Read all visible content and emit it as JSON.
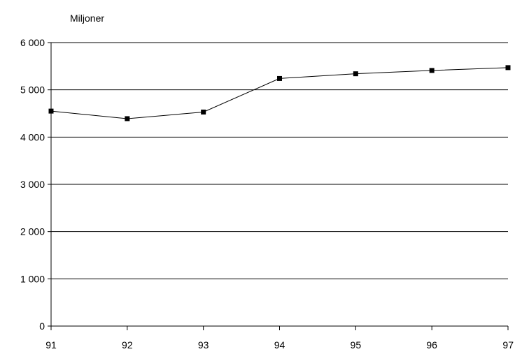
{
  "chart_data": {
    "type": "line",
    "ylabel": "Miljoner",
    "x": [
      "91",
      "92",
      "93",
      "94",
      "95",
      "96",
      "97"
    ],
    "series": [
      {
        "values": [
          4550,
          4390,
          4530,
          5240,
          5340,
          5410,
          5470
        ]
      }
    ],
    "ylim": [
      0,
      6000
    ],
    "yticks": [
      0,
      1000,
      2000,
      3000,
      4000,
      5000,
      6000
    ],
    "ytick_labels": [
      "0",
      "1 000",
      "2 000",
      "3 000",
      "4 000",
      "5 000",
      "6 000"
    ],
    "grid": "horizontal",
    "marker": "square",
    "line_color": "#000000"
  }
}
